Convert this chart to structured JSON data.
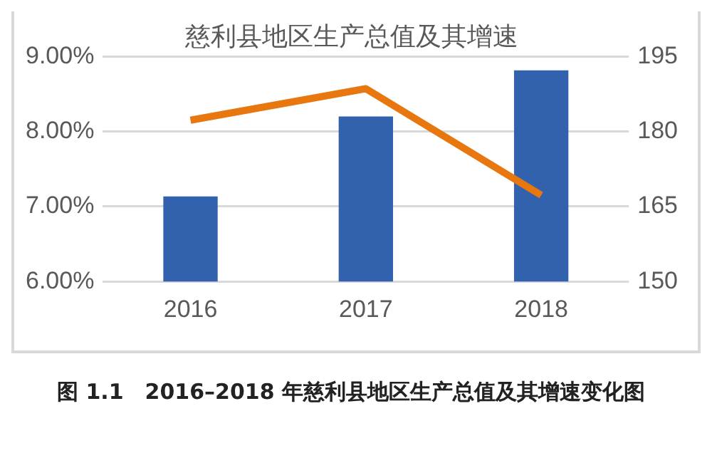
{
  "chart_data": {
    "type": "bar",
    "title": "慈利县地区生产总值及其增速",
    "categories": [
      "2016",
      "2017",
      "2018"
    ],
    "series": [
      {
        "color": "#3262ae",
        "values": [
          167,
          183,
          192.2
        ],
        "axis": "y2"
      },
      {
        "type": "line",
        "color": "#e8770f",
        "values": [
          8.15,
          8.57,
          7.15
        ],
        "axis": "y"
      }
    ],
    "ylim": [
      6,
      9
    ],
    "yticks": [
      {
        "value": 6,
        "label": "6.00%"
      },
      {
        "value": 7,
        "label": "7.00%"
      },
      {
        "value": 8,
        "label": "8.00%"
      },
      {
        "value": 9,
        "label": "9.00%"
      }
    ],
    "y2lim": [
      150,
      195
    ],
    "y2ticks": [
      150,
      165,
      180,
      195
    ],
    "grid": "y",
    "legend": false,
    "marker": "none",
    "line_style": "solid",
    "annotations": [
      "图 1.1　2016–2018 年慈利县地区生产总值及其增速变化图"
    ]
  }
}
